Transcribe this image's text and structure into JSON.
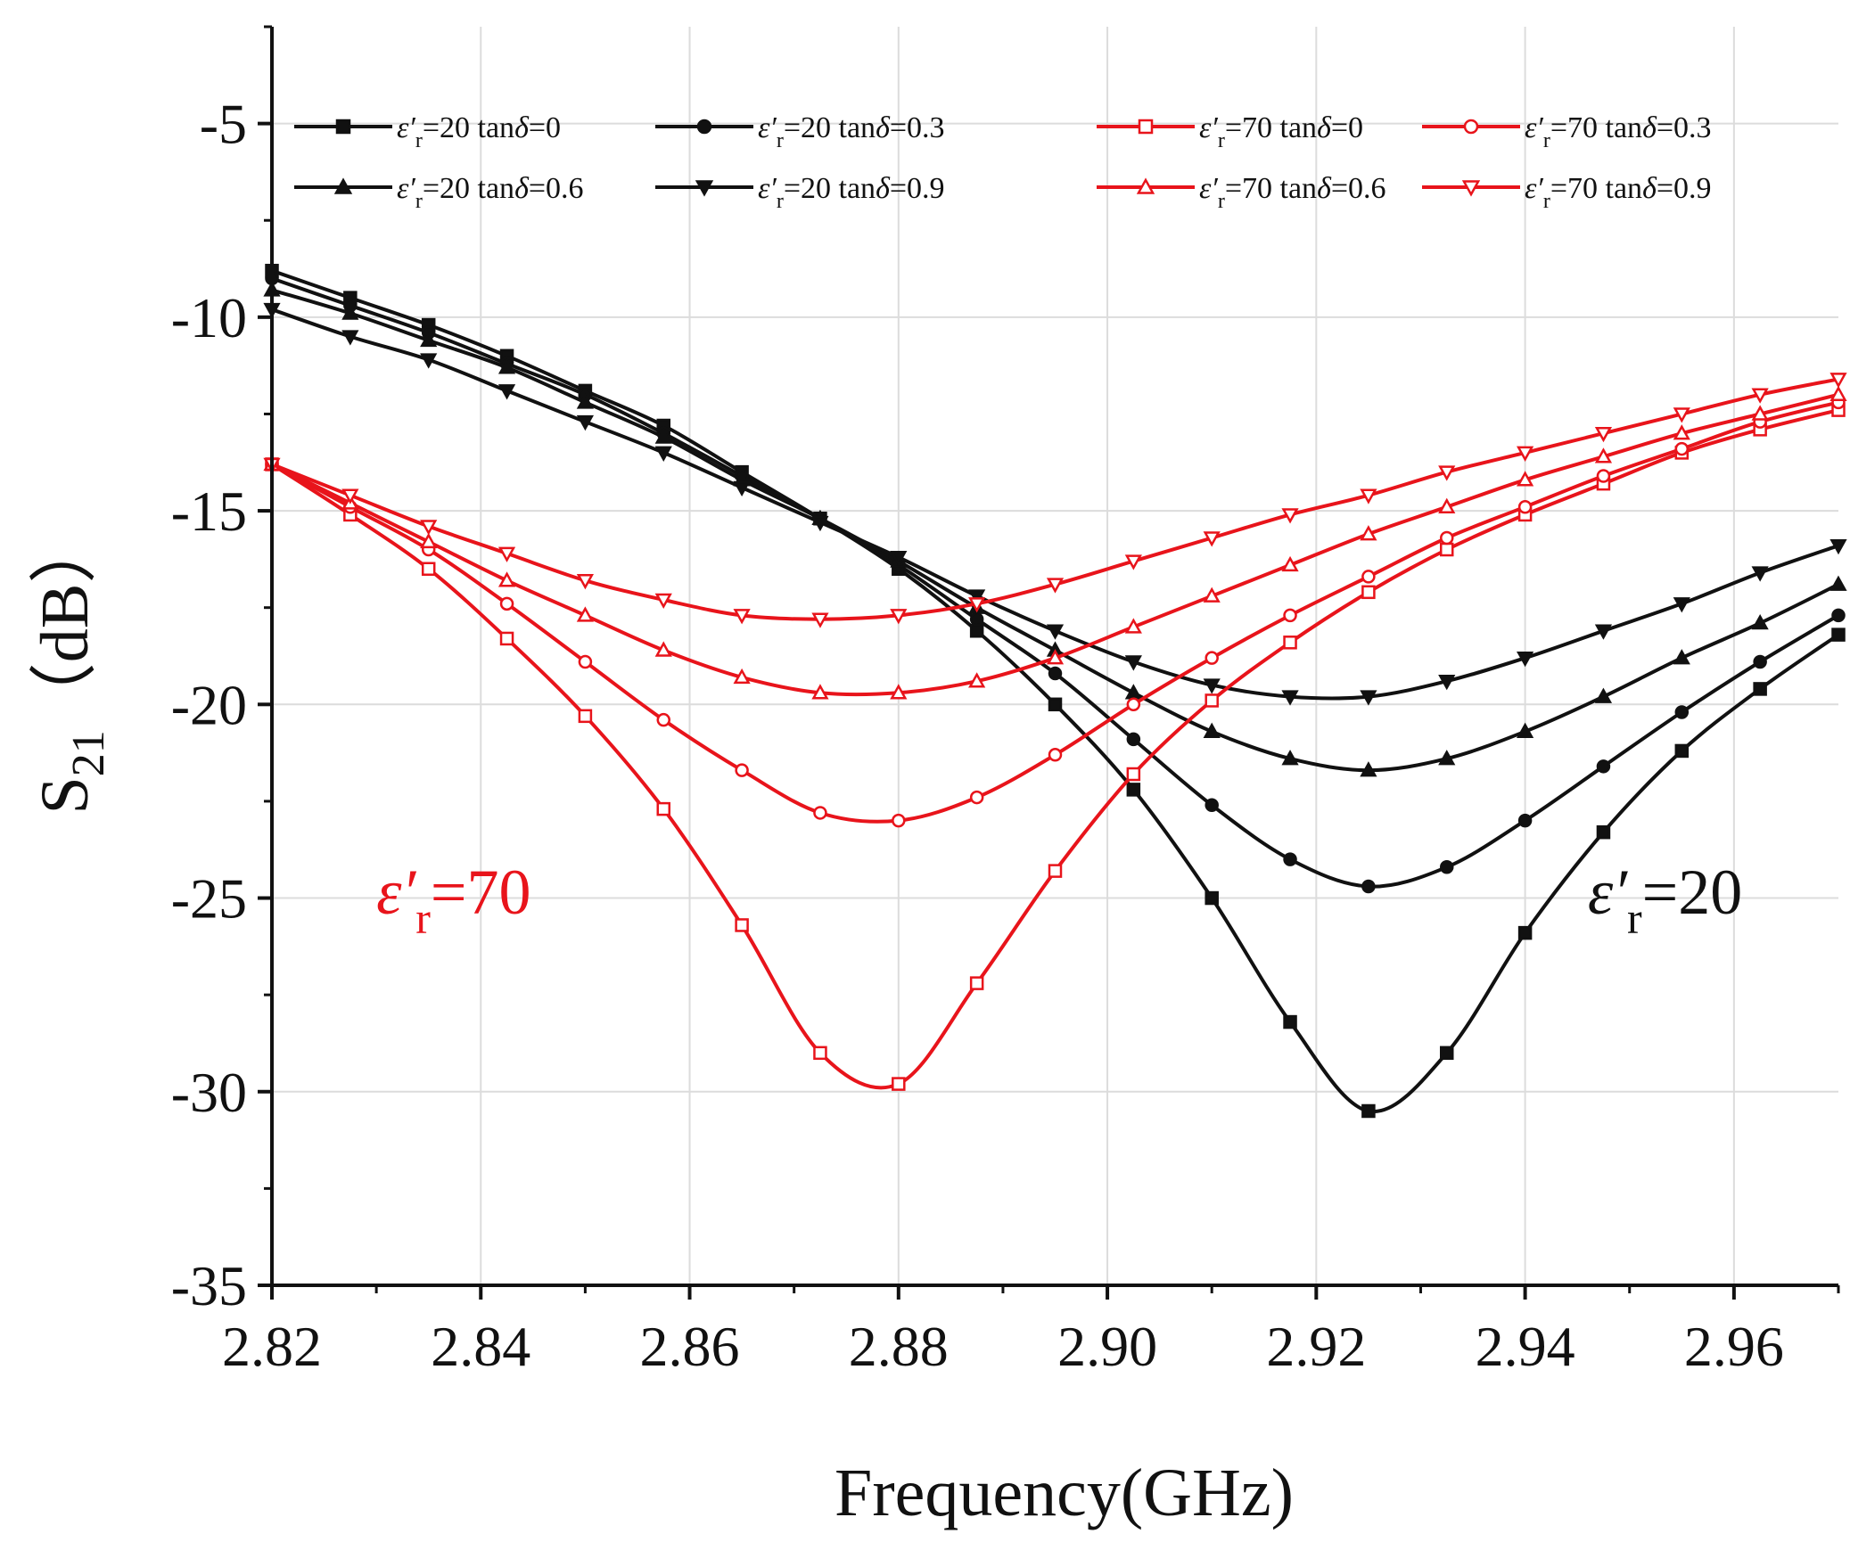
{
  "chart_data": {
    "type": "line",
    "title": "",
    "xlabel": "Frequency(GHz)",
    "ylabel": {
      "main": "S",
      "sub": "21",
      "unit": "（dB）"
    },
    "xlim": [
      2.82,
      2.97
    ],
    "ylim": [
      -35,
      -2.5
    ],
    "grid": true,
    "legend_position": "top",
    "x_ticks": [
      2.82,
      2.84,
      2.86,
      2.88,
      2.9,
      2.92,
      2.94,
      2.96
    ],
    "x_tick_labels": [
      "2.82",
      "2.84",
      "2.86",
      "2.88",
      "2.90",
      "2.92",
      "2.94",
      "2.96"
    ],
    "y_ticks": [
      -5,
      -10,
      -15,
      -20,
      -25,
      -30,
      -35
    ],
    "y_tick_labels": [
      "-5",
      "-10",
      "-15",
      "-20",
      "-25",
      "-30",
      "-35"
    ],
    "colors": {
      "black": "#111111",
      "red": "#e8141b"
    },
    "x": [
      2.82,
      2.8275,
      2.835,
      2.8425,
      2.85,
      2.8575,
      2.865,
      2.8725,
      2.88,
      2.8875,
      2.895,
      2.9025,
      2.91,
      2.9175,
      2.925,
      2.9325,
      2.94,
      2.9475,
      2.955,
      2.9625,
      2.97
    ],
    "series": [
      {
        "name": "ε′r=20 tanδ=0",
        "eps": "20",
        "tan": "0",
        "color": "#111111",
        "marker": "square",
        "filled": true,
        "values": [
          -8.8,
          -9.5,
          -10.2,
          -11.0,
          -11.9,
          -12.8,
          -14.0,
          -15.2,
          -16.5,
          -18.1,
          -20.0,
          -22.2,
          -25.0,
          -28.2,
          -30.5,
          -29.0,
          -25.9,
          -23.3,
          -21.2,
          -19.6,
          -18.2
        ]
      },
      {
        "name": "ε′r=20 tanδ=0.3",
        "eps": "20",
        "tan": "0.3",
        "color": "#111111",
        "marker": "circle",
        "filled": true,
        "values": [
          -9.0,
          -9.7,
          -10.4,
          -11.2,
          -12.0,
          -13.0,
          -14.1,
          -15.2,
          -16.4,
          -17.8,
          -19.2,
          -20.9,
          -22.6,
          -24.0,
          -24.7,
          -24.2,
          -23.0,
          -21.6,
          -20.2,
          -18.9,
          -17.7
        ]
      },
      {
        "name": "ε′r=20 tanδ=0.6",
        "eps": "20",
        "tan": "0.6",
        "color": "#111111",
        "marker": "triangle-up",
        "filled": true,
        "values": [
          -9.3,
          -9.9,
          -10.6,
          -11.3,
          -12.2,
          -13.1,
          -14.2,
          -15.2,
          -16.3,
          -17.5,
          -18.6,
          -19.7,
          -20.7,
          -21.4,
          -21.7,
          -21.4,
          -20.7,
          -19.8,
          -18.8,
          -17.9,
          -16.9
        ]
      },
      {
        "name": "ε′r=20 tanδ=0.9",
        "eps": "20",
        "tan": "0.9",
        "color": "#111111",
        "marker": "triangle-down",
        "filled": true,
        "values": [
          -9.8,
          -10.5,
          -11.1,
          -11.9,
          -12.7,
          -13.5,
          -14.4,
          -15.3,
          -16.2,
          -17.2,
          -18.1,
          -18.9,
          -19.5,
          -19.8,
          -19.8,
          -19.4,
          -18.8,
          -18.1,
          -17.4,
          -16.6,
          -15.9
        ]
      },
      {
        "name": "ε′r=70 tanδ=0",
        "eps": "70",
        "tan": "0",
        "color": "#e8141b",
        "marker": "square",
        "filled": false,
        "values": [
          -13.8,
          -15.1,
          -16.5,
          -18.3,
          -20.3,
          -22.7,
          -25.7,
          -29.0,
          -29.8,
          -27.2,
          -24.3,
          -21.8,
          -19.9,
          -18.4,
          -17.1,
          -16.0,
          -15.1,
          -14.3,
          -13.5,
          -12.9,
          -12.4
        ]
      },
      {
        "name": "ε′r=70 tanδ=0.3",
        "eps": "70",
        "tan": "0.3",
        "color": "#e8141b",
        "marker": "circle",
        "filled": false,
        "values": [
          -13.8,
          -14.9,
          -16.0,
          -17.4,
          -18.9,
          -20.4,
          -21.7,
          -22.8,
          -23.0,
          -22.4,
          -21.3,
          -20.0,
          -18.8,
          -17.7,
          -16.7,
          -15.7,
          -14.9,
          -14.1,
          -13.4,
          -12.7,
          -12.2
        ]
      },
      {
        "name": "ε′r=70 tanδ=0.6",
        "eps": "70",
        "tan": "0.6",
        "color": "#e8141b",
        "marker": "triangle-up",
        "filled": false,
        "values": [
          -13.8,
          -14.8,
          -15.8,
          -16.8,
          -17.7,
          -18.6,
          -19.3,
          -19.7,
          -19.7,
          -19.4,
          -18.8,
          -18.0,
          -17.2,
          -16.4,
          -15.6,
          -14.9,
          -14.2,
          -13.6,
          -13.0,
          -12.5,
          -12.0
        ]
      },
      {
        "name": "ε′r=70 tanδ=0.9",
        "eps": "70",
        "tan": "0.9",
        "color": "#e8141b",
        "marker": "triangle-down",
        "filled": false,
        "values": [
          -13.8,
          -14.6,
          -15.4,
          -16.1,
          -16.8,
          -17.3,
          -17.7,
          -17.8,
          -17.7,
          -17.4,
          -16.9,
          -16.3,
          -15.7,
          -15.1,
          -14.6,
          -14.0,
          -13.5,
          -13.0,
          -12.5,
          -12.0,
          -11.6
        ]
      }
    ],
    "annotations": [
      {
        "eps": "70",
        "color": "#e8141b",
        "anchor_x": 2.83,
        "anchor_y": -25.4
      },
      {
        "eps": "20",
        "color": "#111111",
        "anchor_x": 2.946,
        "anchor_y": -25.4
      }
    ]
  }
}
